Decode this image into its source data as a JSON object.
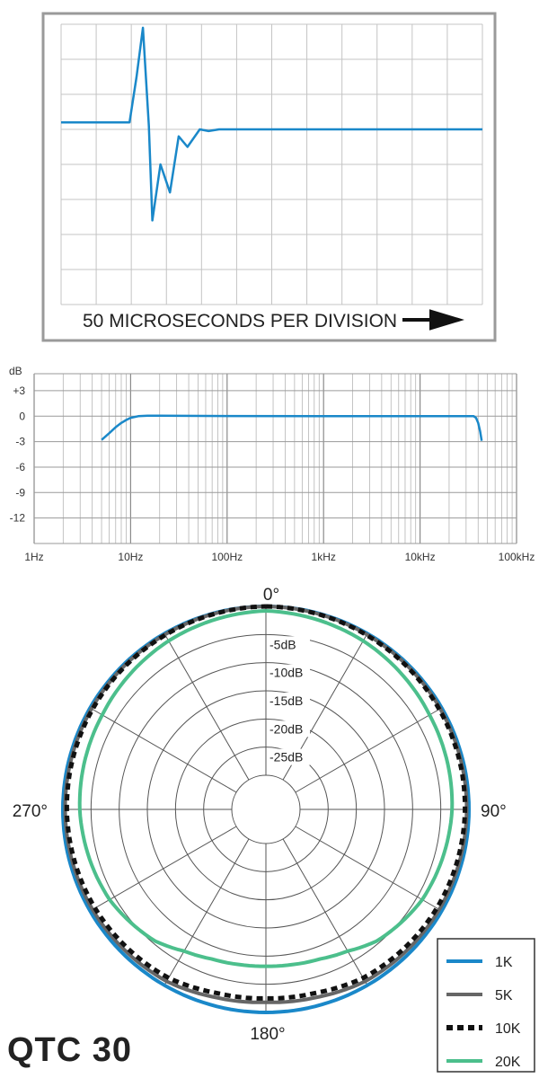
{
  "product_name": "QTC 30",
  "chart_data": [
    {
      "type": "line",
      "name": "impulse_response",
      "xlabel": "50 MICROSECONDS PER DIVISION",
      "x_divisions": 12,
      "y_divisions": 8,
      "grid": true,
      "color": "#1a88c9",
      "series": [
        {
          "x": [
            0,
            1.95,
            2.15,
            2.33,
            2.5,
            2.6,
            2.83,
            3.1,
            3.35,
            3.6,
            3.95,
            4.2,
            4.5,
            12
          ],
          "y": [
            5.2,
            5.2,
            6.5,
            7.9,
            5.1,
            2.4,
            4.0,
            3.2,
            4.8,
            4.5,
            5.0,
            4.95,
            5.0,
            5.0
          ]
        }
      ]
    },
    {
      "type": "line",
      "name": "frequency_response",
      "x_scale": "log",
      "xlim": [
        1,
        100000
      ],
      "ylim": [
        -15,
        5
      ],
      "y_unit": "dB",
      "y_ticks": [
        "+3",
        "0",
        "-3",
        "-6",
        "-9",
        "-12"
      ],
      "x_ticks": [
        "1Hz",
        "10Hz",
        "100Hz",
        "1kHz",
        "10kHz",
        "100kHz"
      ],
      "grid": true,
      "color": "#1a88c9",
      "series": [
        {
          "x": [
            5,
            6,
            7,
            8,
            9,
            10,
            12,
            15,
            20,
            100,
            1000,
            10000,
            30000,
            36000,
            38000,
            40000,
            42000,
            43500
          ],
          "y": [
            -2.8,
            -2.0,
            -1.3,
            -0.8,
            -0.45,
            -0.2,
            0,
            0.05,
            0.05,
            0.02,
            0,
            0,
            0,
            0,
            -0.2,
            -0.8,
            -1.8,
            -2.9
          ]
        }
      ]
    },
    {
      "type": "polar",
      "name": "polar_pattern",
      "angle_labels": [
        "0°",
        "90°",
        "180°",
        "270°"
      ],
      "ring_labels": [
        "-5dB",
        "-10dB",
        "-15dB",
        "-20dB",
        "-25dB"
      ],
      "rlim": [
        -30,
        0
      ],
      "grid": true,
      "legend_position": "bottom-right",
      "series": [
        {
          "name": "1K",
          "style": "solid",
          "color": "#1a88c9",
          "angles": [
            0,
            30,
            60,
            90,
            120,
            150,
            180,
            210,
            240,
            270,
            300,
            330,
            360
          ],
          "values": [
            0,
            0,
            0,
            0,
            0,
            0,
            0,
            0,
            0,
            0,
            0,
            0,
            0
          ]
        },
        {
          "name": "5K",
          "style": "solid",
          "color": "#666666",
          "angles": [
            0,
            30,
            60,
            90,
            120,
            150,
            165,
            180,
            195,
            210,
            240,
            270,
            300,
            330,
            360
          ],
          "values": [
            0,
            -0.2,
            -0.3,
            -0.4,
            -0.5,
            -0.8,
            -1.5,
            -1.8,
            -1.5,
            -0.8,
            -0.5,
            -0.4,
            -0.3,
            -0.2,
            0
          ]
        },
        {
          "name": "10K",
          "style": "dashed",
          "color": "#111111",
          "angles": [
            0,
            30,
            60,
            90,
            120,
            150,
            165,
            180,
            195,
            210,
            240,
            270,
            300,
            330,
            360
          ],
          "values": [
            0,
            -0.3,
            -0.5,
            -0.7,
            -1.0,
            -1.5,
            -2.3,
            -2.5,
            -2.3,
            -1.5,
            -1.0,
            -0.7,
            -0.5,
            -0.3,
            0
          ]
        },
        {
          "name": "20K",
          "style": "solid",
          "color": "#4cbf8c",
          "angles": [
            0,
            30,
            60,
            90,
            120,
            140,
            150,
            160,
            170,
            180,
            190,
            200,
            210,
            220,
            240,
            270,
            300,
            330,
            360
          ],
          "values": [
            -0.8,
            -1.5,
            -2.5,
            -3.0,
            -4.0,
            -5.5,
            -7.0,
            -7.8,
            -8.1,
            -8.2,
            -8.1,
            -7.8,
            -7.0,
            -5.5,
            -4.0,
            -3.0,
            -2.5,
            -1.5,
            -0.8
          ]
        }
      ]
    }
  ]
}
